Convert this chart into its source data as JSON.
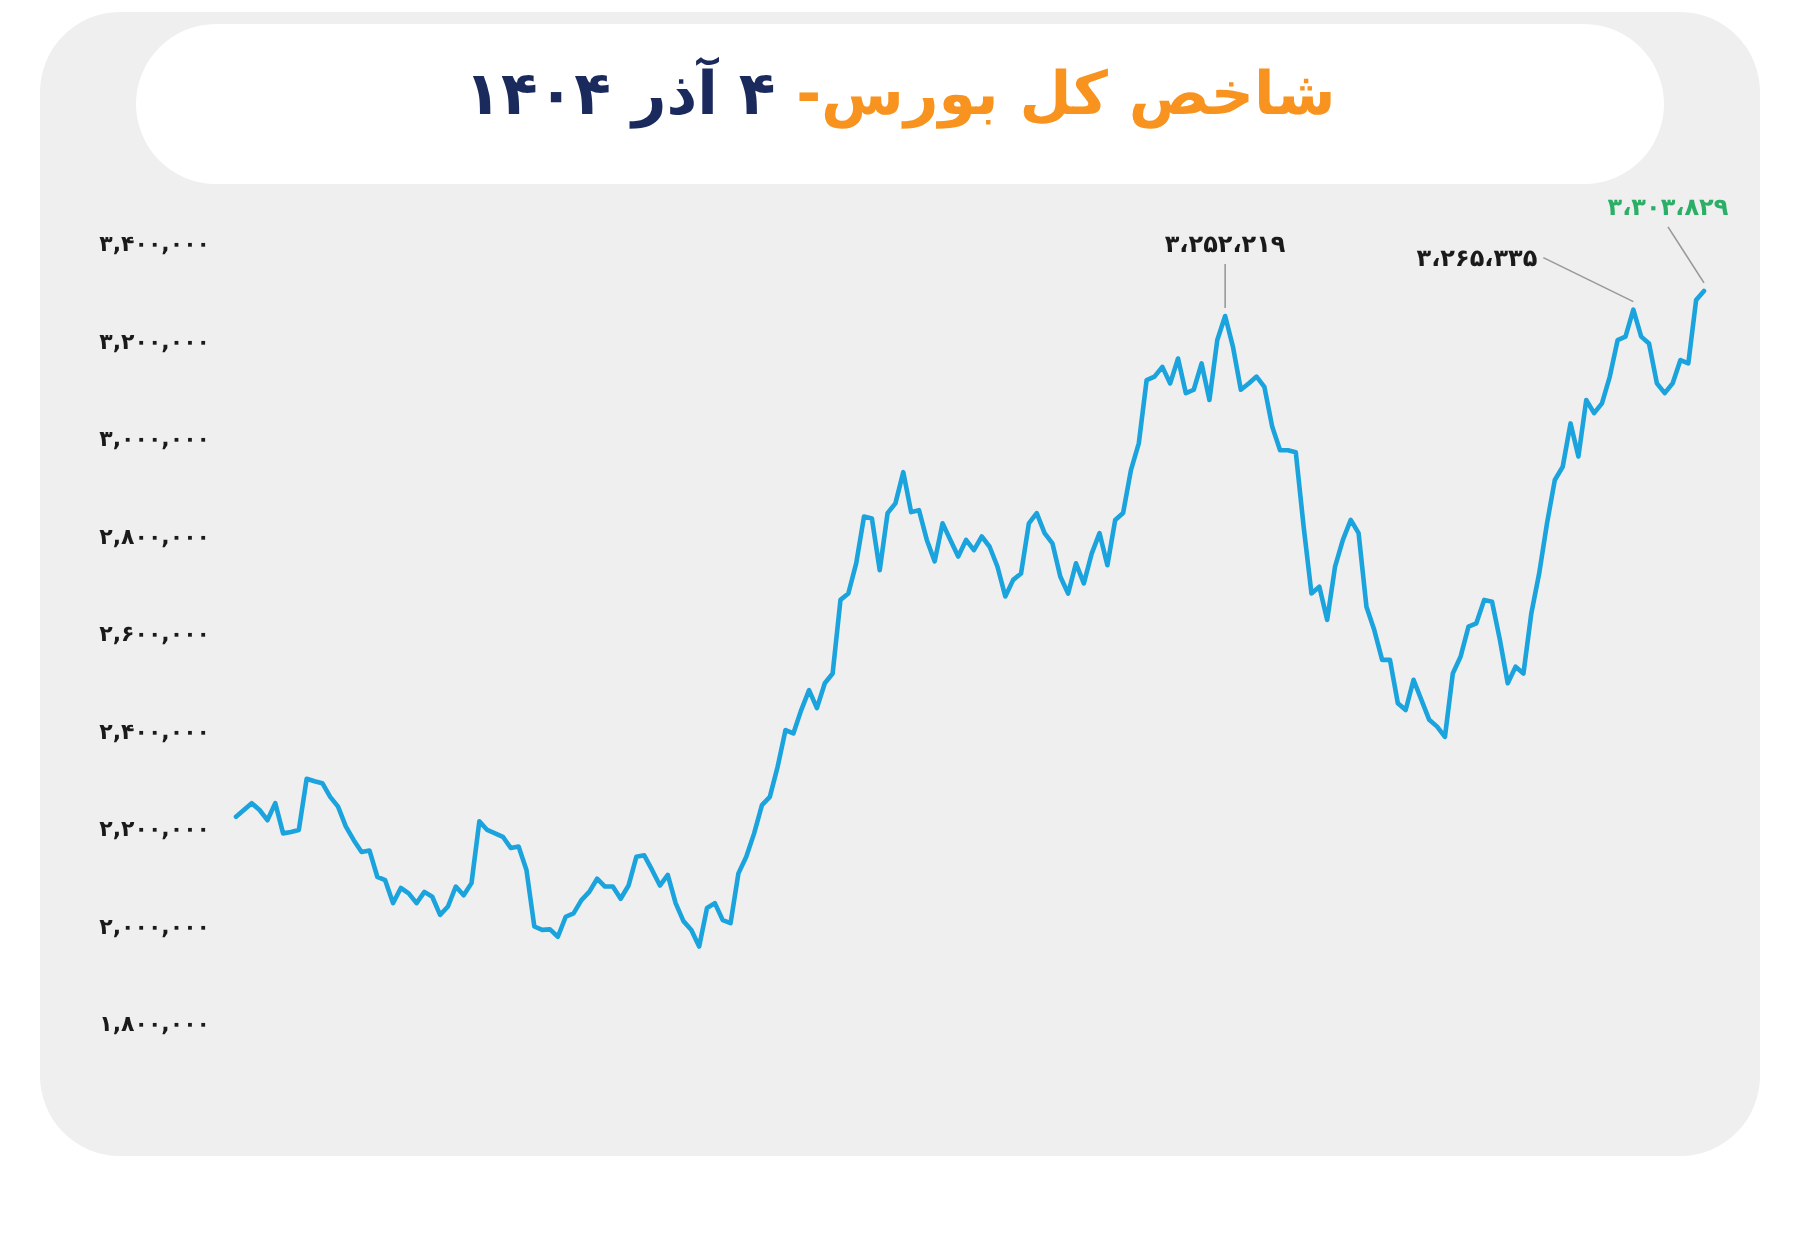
{
  "chart_data": {
    "type": "line",
    "title": "شاخص کل بورس-",
    "subtitle": "۴ آذر ۱۴۰۴",
    "categories": [
      null,
      null,
      null,
      null,
      null,
      null,
      null,
      null,
      null,
      null,
      null,
      null,
      null,
      null,
      null,
      null,
      null,
      null,
      null,
      null,
      null,
      null,
      null,
      null,
      null,
      null,
      null,
      null,
      null,
      null,
      null,
      null,
      null,
      null,
      null,
      null,
      null,
      null,
      null,
      null,
      null,
      null,
      null,
      null,
      null,
      null,
      null,
      null,
      null,
      null,
      null,
      null,
      null,
      null,
      null,
      null,
      null,
      null,
      null,
      null,
      null,
      null,
      null,
      null,
      null,
      null,
      null,
      null,
      null,
      null,
      null,
      null,
      null,
      null,
      null,
      null,
      null,
      null,
      null,
      null,
      null,
      null,
      null,
      null,
      null,
      null,
      null,
      null,
      null,
      null,
      null,
      null,
      null,
      null,
      null,
      null,
      null,
      null,
      null,
      null,
      null,
      null,
      null,
      null,
      null,
      null,
      null,
      null,
      null,
      null,
      null,
      null,
      null,
      null,
      null,
      null,
      null,
      null,
      null,
      null,
      null,
      null,
      null,
      null,
      null,
      null,
      null,
      null,
      null,
      null,
      null,
      null,
      null,
      null,
      null,
      null,
      null,
      null,
      null,
      null,
      null,
      null,
      null,
      null,
      null,
      null,
      null,
      null,
      null,
      null,
      null,
      null,
      null,
      null,
      null,
      null,
      null,
      null,
      null,
      null,
      null,
      null,
      null,
      null,
      null,
      null,
      null,
      null,
      null,
      null,
      null,
      null,
      null,
      null,
      null,
      null,
      null,
      null,
      null,
      null,
      null,
      null,
      null,
      null,
      null,
      null,
      null,
      null
    ],
    "series": [
      {
        "color": "#1aa3dd",
        "values": [
          2225000,
          2239000,
          2253000,
          2239000,
          2218000,
          2253000,
          2191000,
          2194000,
          2198000,
          2303000,
          2298000,
          2294000,
          2266000,
          2246000,
          2205000,
          2177000,
          2153000,
          2156000,
          2102000,
          2095000,
          2048000,
          2079000,
          2068000,
          2048000,
          2071000,
          2061000,
          2024000,
          2041000,
          2082000,
          2064000,
          2089000,
          2216000,
          2198000,
          2191000,
          2184000,
          2161000,
          2164000,
          2116000,
          2000000,
          1993000,
          1994000,
          1979000,
          2020000,
          2027000,
          2054000,
          2071000,
          2098000,
          2082000,
          2082000,
          2057000,
          2084000,
          2143000,
          2146000,
          2116000,
          2084000,
          2106000,
          2048000,
          2011000,
          1993000,
          1959000,
          2038000,
          2048000,
          2013000,
          2007000,
          2109000,
          2143000,
          2191000,
          2249000,
          2266000,
          2328000,
          2403000,
          2396000,
          2444000,
          2485000,
          2448000,
          2499000,
          2519000,
          2670000,
          2683000,
          2745000,
          2841000,
          2837000,
          2731000,
          2848000,
          2868000,
          2932000,
          2850000,
          2854000,
          2793000,
          2749000,
          2827000,
          2793000,
          2759000,
          2793000,
          2772000,
          2800000,
          2779000,
          2738000,
          2677000,
          2711000,
          2724000,
          2827000,
          2848000,
          2807000,
          2786000,
          2718000,
          2683000,
          2745000,
          2704000,
          2765000,
          2807000,
          2741000,
          2834000,
          2848000,
          2936000,
          2991000,
          3121000,
          3128000,
          3148000,
          3114000,
          3165000,
          3094000,
          3101000,
          3155000,
          3080000,
          3203000,
          3252219,
          3189000,
          3101000,
          3114000,
          3128000,
          3107000,
          3025000,
          2977000,
          2977000,
          2973000,
          2820000,
          2683000,
          2697000,
          2629000,
          2738000,
          2793000,
          2834000,
          2807000,
          2656000,
          2608000,
          2547000,
          2547000,
          2458000,
          2444000,
          2506000,
          2465000,
          2424000,
          2410000,
          2389000,
          2519000,
          2554000,
          2615000,
          2622000,
          2670000,
          2666000,
          2588000,
          2499000,
          2533000,
          2519000,
          2642000,
          2724000,
          2827000,
          2916000,
          2943000,
          3032000,
          2964000,
          3080000,
          3053000,
          3073000,
          3128000,
          3203000,
          3210000,
          3265335,
          3210000,
          3196000,
          3114000,
          3094000,
          3114000,
          3162000,
          3155000,
          3285000,
          3303829
        ]
      }
    ],
    "ylim": [
      1800000,
      3400000
    ],
    "yticks": [
      {
        "value": 1800000,
        "label": "۱,۸۰۰,۰۰۰"
      },
      {
        "value": 2000000,
        "label": "۲,۰۰۰,۰۰۰"
      },
      {
        "value": 2200000,
        "label": "۲,۲۰۰,۰۰۰"
      },
      {
        "value": 2400000,
        "label": "۲,۴۰۰,۰۰۰"
      },
      {
        "value": 2600000,
        "label": "۲,۶۰۰,۰۰۰"
      },
      {
        "value": 2800000,
        "label": "۲,۸۰۰,۰۰۰"
      },
      {
        "value": 3000000,
        "label": "۳,۰۰۰,۰۰۰"
      },
      {
        "value": 3200000,
        "label": "۳,۲۰۰,۰۰۰"
      },
      {
        "value": 3400000,
        "label": "۳,۴۰۰,۰۰۰"
      }
    ],
    "annotations": [
      {
        "text": "۳،۲۵۲،۲۱۹",
        "y": 3252219
      },
      "۳،۲۶۵،۳۳۵",
      "۳،۳۰۳،۸۲۹"
    ],
    "tick_labels": "y",
    "line_style": "solid",
    "marker": "none"
  }
}
